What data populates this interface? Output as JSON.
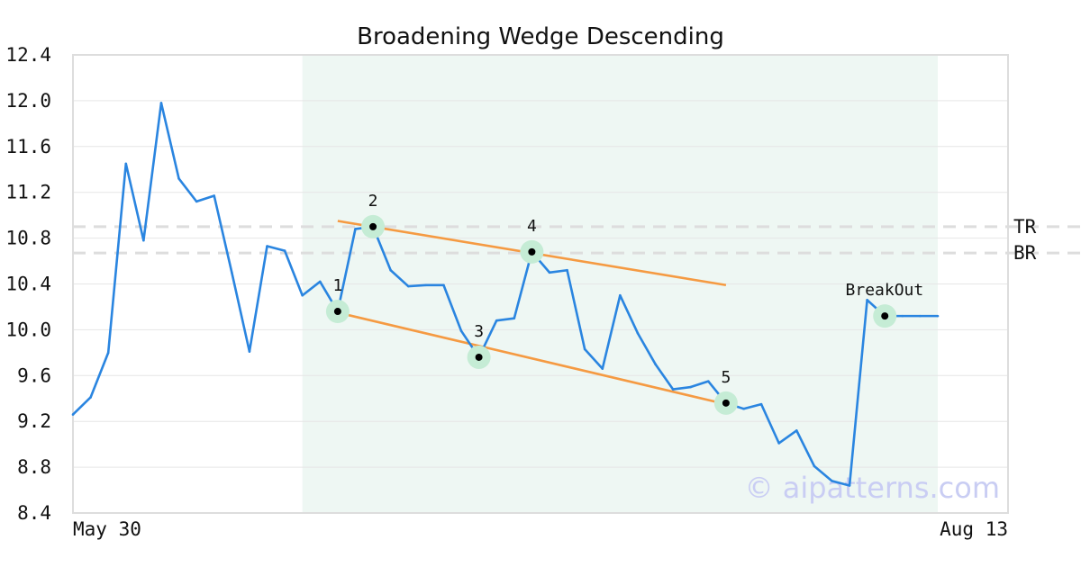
{
  "chart_data": {
    "type": "line",
    "title": "Broadening Wedge Descending",
    "xlabel": "",
    "ylabel": "",
    "ylim": [
      8.4,
      12.4
    ],
    "yticks": [
      "12.4",
      "12.0",
      "11.6",
      "11.2",
      "10.8",
      "10.4",
      "10.0",
      "9.6",
      "9.2",
      "8.8",
      "8.4"
    ],
    "x_start_label": "May 30",
    "x_end_label": "Aug 13",
    "n_points": 50,
    "series": [
      {
        "color": "#2a85e0",
        "values": [
          9.26,
          9.41,
          9.8,
          11.45,
          10.78,
          11.98,
          11.32,
          11.12,
          11.17,
          10.5,
          9.81,
          10.73,
          10.69,
          10.3,
          10.42,
          10.16,
          10.88,
          10.9,
          10.52,
          10.38,
          10.39,
          10.39,
          9.99,
          9.76,
          10.08,
          10.1,
          10.68,
          10.5,
          10.52,
          9.83,
          9.66,
          10.3,
          9.97,
          9.7,
          9.48,
          9.5,
          9.55,
          9.36,
          9.31,
          9.35,
          9.01,
          9.12,
          8.81,
          8.68,
          8.64,
          10.26,
          10.12,
          10.12,
          10.12,
          10.12
        ]
      }
    ],
    "pattern_region": {
      "start_index": 13,
      "end_index": 49,
      "color": "#eef7f3"
    },
    "trendlines": [
      {
        "name": "upper",
        "start": {
          "index": 15,
          "value": 10.95
        },
        "end": {
          "index": 37,
          "value": 10.39
        },
        "color": "#f59a42"
      },
      {
        "name": "lower",
        "start": {
          "index": 15,
          "value": 10.15
        },
        "end": {
          "index": 37,
          "value": 9.35
        },
        "color": "#f59a42"
      }
    ],
    "pivots": [
      {
        "label": "1",
        "index": 15,
        "value": 10.16
      },
      {
        "label": "2",
        "index": 17,
        "value": 10.9
      },
      {
        "label": "3",
        "index": 23,
        "value": 9.76
      },
      {
        "label": "4",
        "index": 26,
        "value": 10.68
      },
      {
        "label": "5",
        "index": 37,
        "value": 9.36
      },
      {
        "label": "BreakOut",
        "index": 46,
        "value": 10.12
      }
    ],
    "levels": [
      {
        "label": "TR",
        "value": 10.9
      },
      {
        "label": "BR",
        "value": 10.67
      }
    ],
    "grid": true,
    "watermark": "© aipatterns.com",
    "colors": {
      "line": "#2a85e0",
      "trend": "#f59a42",
      "marker_halo": "#c5ecd5",
      "marker_dot": "#000000",
      "grid": "#e6e6e6",
      "level_line": "#dddddd",
      "watermark": "#c9cdf3",
      "border": "#dddddd"
    }
  }
}
